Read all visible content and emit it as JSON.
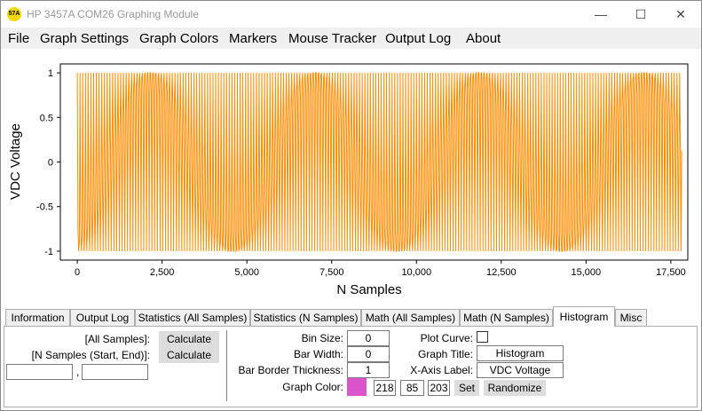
{
  "window": {
    "title": "HP 3457A COM26 Graphing Module",
    "icon_text": "57A",
    "controls": {
      "minimize": "—",
      "maximize": "☐",
      "close": "✕"
    }
  },
  "menu": [
    "File",
    "Graph Settings",
    "Graph Colors",
    "Markers",
    "Mouse Tracker",
    "Output Log",
    "About"
  ],
  "chart_data": {
    "type": "line",
    "title": "",
    "xlabel": "N Samples",
    "ylabel": "VDC Voltage",
    "xlim": [
      -500,
      18000
    ],
    "ylim": [
      -1.1,
      1.1
    ],
    "xticks": [
      0,
      2500,
      5000,
      7500,
      10000,
      12500,
      15000,
      17500
    ],
    "xtick_labels": [
      "0",
      "2,500",
      "5,000",
      "7,500",
      "10,000",
      "12,500",
      "15,000",
      "17,500"
    ],
    "yticks": [
      -1,
      -0.5,
      0,
      0.5,
      1
    ],
    "ytick_labels": [
      "-1",
      "-0.5",
      "0",
      "0.5",
      "1"
    ],
    "series_color": "#ff8c00",
    "grid": false,
    "samples": 17800,
    "signal": "dense oscillation between -1 and 1 with beating envelope"
  },
  "tabs": [
    "Information",
    "Output Log",
    "Statistics (All Samples)",
    "Statistics (N Samples)",
    "Math (All Samples)",
    "Math (N Samples)",
    "Histogram",
    "Misc"
  ],
  "active_tab": "Histogram",
  "left_panel": {
    "all_samples_label": "[All Samples]:",
    "n_samples_label": "[N Samples (Start, End)]:",
    "calculate_label": "Calculate",
    "comma": ",",
    "start_value": "",
    "end_value": ""
  },
  "histogram": {
    "bin_size_label": "Bin Size:",
    "bin_size": "0",
    "bar_width_label": "Bar Width:",
    "bar_width": "0",
    "border_label": "Bar Border Thickness:",
    "border": "1",
    "graph_color_label": "Graph Color:",
    "graph_color": "#da55cb",
    "r": "218",
    "g": "85",
    "b": "203",
    "set_label": "Set",
    "randomize_label": "Randomize",
    "plot_curve_label": "Plot Curve:",
    "graph_title_label": "Graph Title:",
    "graph_title": "Histogram",
    "x_axis_label_label": "X-Axis Label:",
    "x_axis_label": "VDC Voltage"
  }
}
